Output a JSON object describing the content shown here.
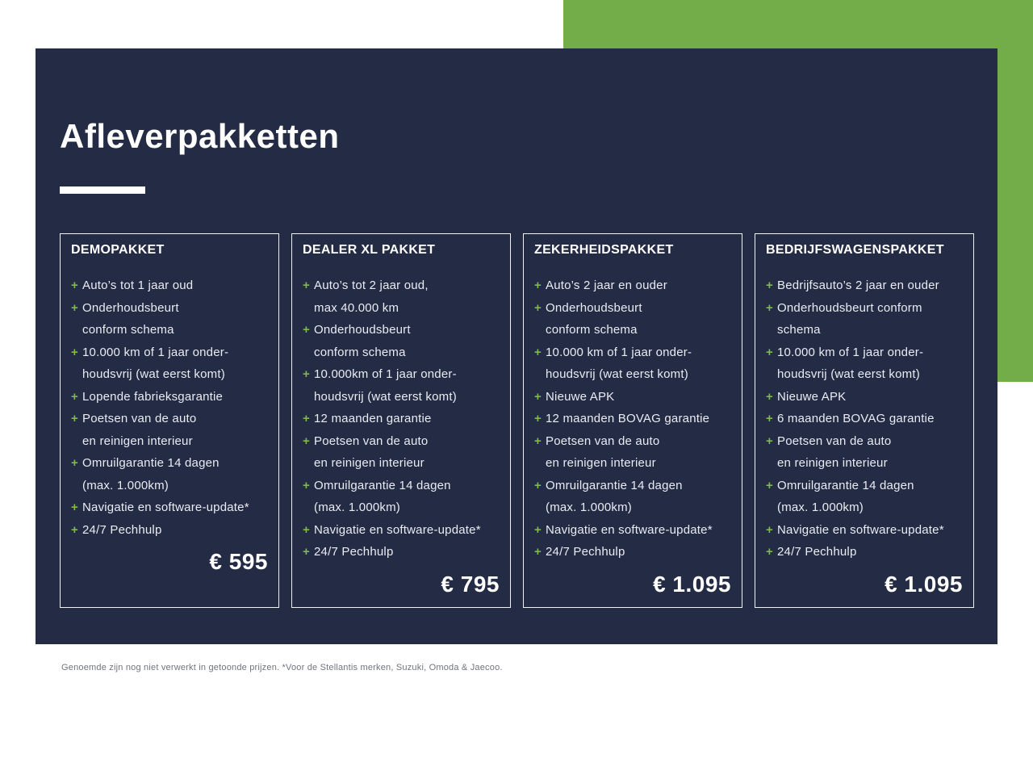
{
  "page": {
    "title": "Afleverpakketten",
    "footnote": "Genoemde zijn nog niet verwerkt in getoonde prijzen. *Voor de Stellantis merken, Suzuki, Omoda & Jaecoo."
  },
  "glyphs": {
    "plus": "+"
  },
  "colors": {
    "panel_navy": "#242B45",
    "accent_green": "#72AD4A",
    "plus_green": "#7FB950",
    "item_text": "#E9ECF2",
    "footnote_gray": "#70747E"
  },
  "cards": [
    {
      "title": "DEMOPAKKET",
      "price": "€ 595",
      "items": [
        "Auto’s tot 1 jaar oud",
        "Onderhoudsbeurt\nconform schema",
        "10.000 km of 1 jaar onder-\nhoudsvrij (wat eerst komt)",
        "Lopende fabrieksgarantie",
        "Poetsen van de auto\nen reinigen interieur",
        "Omruilgarantie 14 dagen\n(max. 1.000km)",
        "Navigatie en software-update*",
        "24/7 Pechhulp"
      ]
    },
    {
      "title": "DEALER XL PAKKET",
      "price": "€ 795",
      "items": [
        "Auto’s tot 2 jaar oud,\nmax 40.000 km",
        "Onderhoudsbeurt\nconform schema",
        "10.000km of 1 jaar onder-\nhoudsvrij (wat eerst komt)",
        "12 maanden garantie",
        "Poetsen van de auto\nen reinigen interieur",
        "Omruilgarantie 14 dagen\n(max. 1.000km)",
        "Navigatie en software-update*",
        "24/7 Pechhulp"
      ]
    },
    {
      "title": "ZEKERHEIDSPAKKET",
      "price": "€ 1.095",
      "items": [
        "Auto’s 2 jaar en ouder",
        "Onderhoudsbeurt\nconform schema",
        "10.000 km of 1 jaar onder-\nhoudsvrij (wat eerst komt)",
        "Nieuwe APK",
        "12 maanden BOVAG garantie",
        "Poetsen van de auto\nen reinigen interieur",
        "Omruilgarantie 14 dagen\n(max. 1.000km)",
        "Navigatie en software-update*",
        "24/7 Pechhulp"
      ]
    },
    {
      "title": "BEDRIJFSWAGENSPAKKET",
      "price": "€ 1.095",
      "items": [
        "Bedrijfsauto’s 2 jaar en ouder",
        "Onderhoudsbeurt conform\nschema",
        "10.000 km of 1 jaar onder-\nhoudsvrij (wat eerst komt)",
        "Nieuwe APK",
        "6 maanden BOVAG garantie",
        "Poetsen van de auto\nen reinigen interieur",
        "Omruilgarantie 14 dagen\n(max. 1.000km)",
        "Navigatie en software-update*",
        "24/7 Pechhulp"
      ]
    }
  ]
}
